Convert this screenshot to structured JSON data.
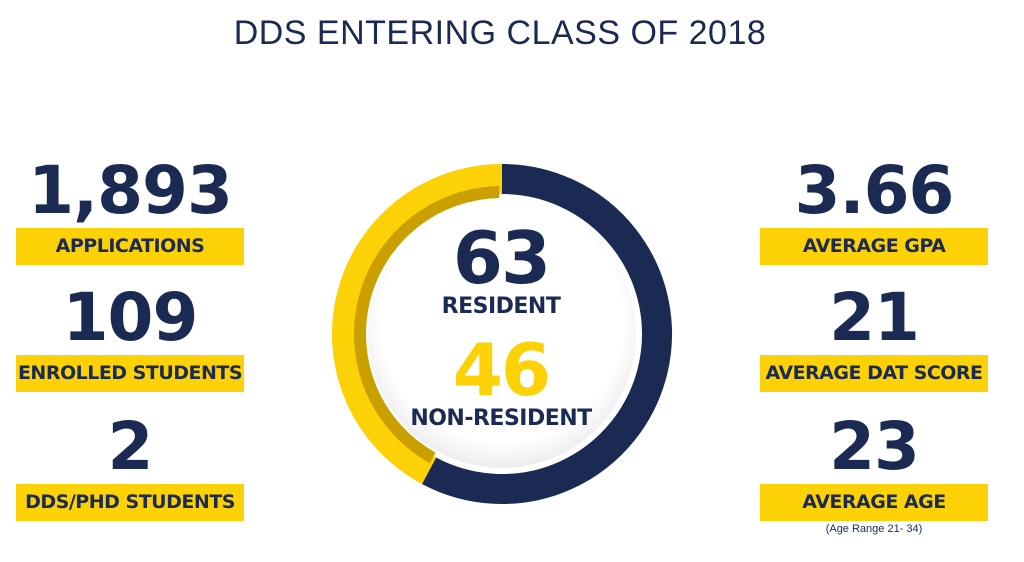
{
  "title": "DDS ENTERING CLASS OF 2018",
  "colors": {
    "navy": "#1b2a52",
    "gold": "#fcd206",
    "dark_gold": "#c9a000"
  },
  "left": [
    {
      "value": "1,893",
      "label": "APPLICATIONS"
    },
    {
      "value": "109",
      "label": "ENROLLED STUDENTS"
    },
    {
      "value": "2",
      "label": "DDS/PHD STUDENTS"
    }
  ],
  "right": [
    {
      "value": "3.66",
      "label": "AVERAGE GPA"
    },
    {
      "value": "21",
      "label": "AVERAGE DAT SCORE"
    },
    {
      "value": "23",
      "label": "AVERAGE AGE"
    }
  ],
  "age_note": "(Age Range 21- 34)",
  "center": {
    "resident_value": "63",
    "resident_label": "RESIDENT",
    "nonresident_value": "46",
    "nonresident_label": "NON-RESIDENT",
    "resident_share": 0.578,
    "nonresident_share": 0.422
  }
}
